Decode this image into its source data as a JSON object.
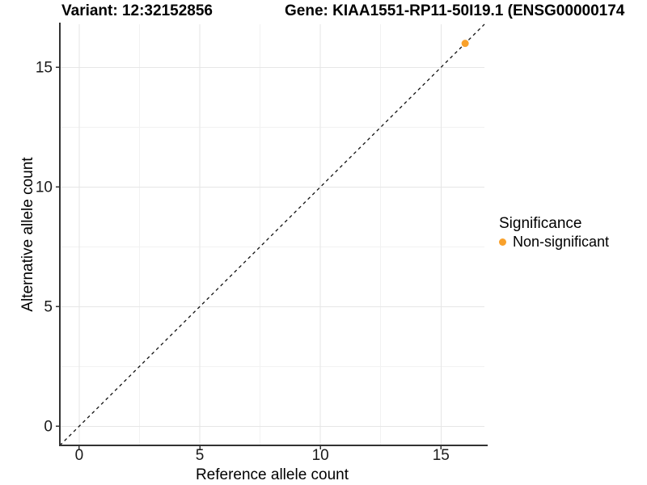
{
  "chart_data": {
    "type": "scatter",
    "title_left": "Variant: 12:32152856",
    "title_right": "Gene: KIAA1551-RP11-50I19.1 (ENSG00000174",
    "xlabel": "Reference allele count",
    "ylabel": "Alternative allele count",
    "xlim": [
      -0.8,
      16.8
    ],
    "ylim": [
      -0.8,
      16.8
    ],
    "xticks": [
      0,
      5,
      10,
      15
    ],
    "yticks": [
      0,
      5,
      10,
      15
    ],
    "minor_xticks": [
      2.5,
      7.5,
      12.5
    ],
    "minor_yticks": [
      2.5,
      7.5,
      12.5
    ],
    "grid": "major and minor gridlines on white background",
    "identity_line": {
      "style": "dashed",
      "x1": -0.8,
      "y1": -0.8,
      "x2": 16.8,
      "y2": 16.8
    },
    "points": [
      {
        "x": 16,
        "y": 16,
        "series": "Non-significant"
      }
    ],
    "legend": {
      "title": "Significance",
      "position": "right",
      "items": [
        {
          "label": "Non-significant",
          "color": "#F9A12B"
        }
      ]
    }
  },
  "colors": {
    "point": "#F9A12B",
    "grid_major": "#E6E6E6",
    "grid_minor": "#F2F2F2",
    "axis_line": "#333333",
    "tick_label": "#1A1A1A",
    "dashed_line": "#111111",
    "background": "#FFFFFF"
  }
}
